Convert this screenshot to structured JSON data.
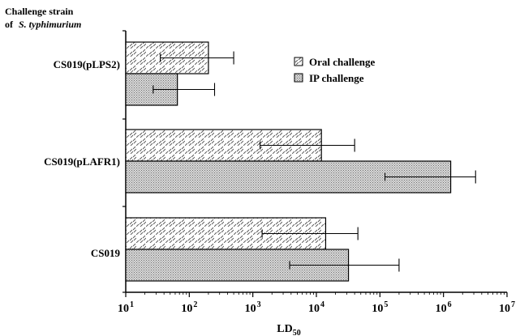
{
  "chart_data": {
    "type": "bar",
    "orientation": "horizontal",
    "x_scale": "log",
    "xlim": [
      10,
      10000000
    ],
    "xlabel": "LD50",
    "xlabel_main": "LD",
    "xlabel_sub": "50",
    "header_line1": "Challenge strain",
    "header_line2_prefix": "of",
    "header_line2_species": "S.  typhimurium",
    "categories": [
      "CS019(pLPS2)",
      "CS019(pLAFR1)",
      "CS019"
    ],
    "x_ticks": [
      {
        "base": "10",
        "exp": "1",
        "value": 10
      },
      {
        "base": "10",
        "exp": "2",
        "value": 100
      },
      {
        "base": "10",
        "exp": "3",
        "value": 1000
      },
      {
        "base": "10",
        "exp": "4",
        "value": 10000
      },
      {
        "base": "10",
        "exp": "5",
        "value": 100000
      },
      {
        "base": "10",
        "exp": "6",
        "value": 1000000
      },
      {
        "base": "10",
        "exp": "7",
        "value": 10000000
      }
    ],
    "series": [
      {
        "name": "Oral challenge",
        "pattern": "diagonal-hatch",
        "values": [
          200,
          12000,
          14000
        ],
        "error_low": [
          35,
          1300,
          1400
        ],
        "error_high": [
          500,
          40000,
          45000
        ]
      },
      {
        "name": "IP challenge",
        "pattern": "stipple",
        "values": [
          65,
          1300000,
          32000
        ],
        "error_low": [
          27,
          120000,
          3800
        ],
        "error_high": [
          250,
          3200000,
          200000
        ]
      }
    ],
    "legend_position": "top-right",
    "grid": false,
    "colors": {
      "fill": "#ffffff",
      "ink": "#000000",
      "stipple": "#8a8a8a"
    }
  }
}
